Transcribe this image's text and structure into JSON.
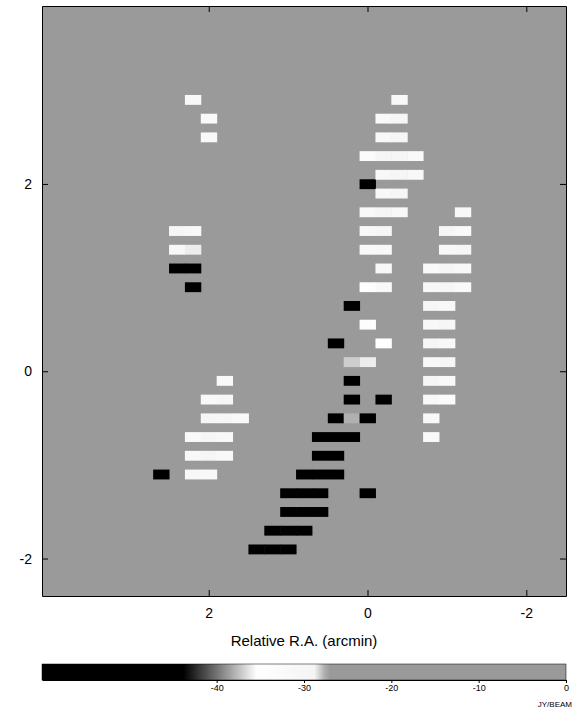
{
  "chart_data": {
    "type": "heatmap",
    "x_label": "Relative R.A. (arcmin)",
    "xlim": [
      4.1,
      -2.5
    ],
    "xticks": [
      2,
      0,
      -2
    ],
    "ylim": [
      -2.4,
      3.9
    ],
    "yticks": [
      -2,
      0,
      2
    ],
    "cells": [
      [
        1.4,
        -1.9,
        -47
      ],
      [
        1.2,
        -1.9,
        -48
      ],
      [
        1.0,
        -1.9,
        -46
      ],
      [
        1.2,
        -1.7,
        -48
      ],
      [
        1.0,
        -1.7,
        -48
      ],
      [
        0.8,
        -1.7,
        -46
      ],
      [
        1.0,
        -1.5,
        -47
      ],
      [
        0.8,
        -1.5,
        -48
      ],
      [
        0.6,
        -1.5,
        -45
      ],
      [
        1.0,
        -1.3,
        -45
      ],
      [
        0.8,
        -1.3,
        -48
      ],
      [
        0.6,
        -1.3,
        -47
      ],
      [
        0.8,
        -1.1,
        -47
      ],
      [
        0.6,
        -1.1,
        -48
      ],
      [
        0.4,
        -1.1,
        -45
      ],
      [
        0.6,
        -0.9,
        -48
      ],
      [
        0.4,
        -0.9,
        -47
      ],
      [
        0.6,
        -0.7,
        -45
      ],
      [
        0.4,
        -0.7,
        -48
      ],
      [
        0.2,
        -0.7,
        -46
      ],
      [
        0.4,
        -0.5,
        -46
      ],
      [
        0.2,
        -0.5,
        -38
      ],
      [
        0.0,
        -0.5,
        -47
      ],
      [
        0.2,
        -0.3,
        -47
      ],
      [
        -0.2,
        -0.3,
        -46
      ],
      [
        0.2,
        -0.1,
        -45
      ],
      [
        0.4,
        0.3,
        -47
      ],
      [
        0.2,
        0.7,
        -46
      ],
      [
        0.0,
        2.0,
        -47
      ],
      [
        0.0,
        -1.3,
        -45
      ],
      [
        0.0,
        0.1,
        -36
      ],
      [
        0.0,
        0.5,
        -34
      ],
      [
        0.0,
        0.9,
        -35
      ],
      [
        -0.2,
        0.3,
        -35
      ],
      [
        0.2,
        0.1,
        -37
      ],
      [
        -1.2,
        1.7,
        -31
      ],
      [
        -1.0,
        1.5,
        -30
      ],
      [
        -1.2,
        1.5,
        -32
      ],
      [
        -1.0,
        1.3,
        -31
      ],
      [
        -1.2,
        1.3,
        -30
      ],
      [
        -0.8,
        1.1,
        -32
      ],
      [
        -1.0,
        1.1,
        -30
      ],
      [
        -1.2,
        1.1,
        -31
      ],
      [
        -0.8,
        0.9,
        -31
      ],
      [
        -1.0,
        0.9,
        -30
      ],
      [
        -1.2,
        0.9,
        -32
      ],
      [
        -0.8,
        0.7,
        -30
      ],
      [
        -1.0,
        0.7,
        -31
      ],
      [
        -0.8,
        0.5,
        -31
      ],
      [
        -1.0,
        0.5,
        -30
      ],
      [
        -0.8,
        0.3,
        -30
      ],
      [
        -1.0,
        0.3,
        -31
      ],
      [
        -0.8,
        0.1,
        -31
      ],
      [
        -1.0,
        0.1,
        -30
      ],
      [
        -0.8,
        -0.1,
        -30
      ],
      [
        -1.0,
        -0.1,
        -32
      ],
      [
        -0.8,
        -0.3,
        -31
      ],
      [
        -1.0,
        -0.3,
        -33
      ],
      [
        -0.8,
        -0.5,
        -31
      ],
      [
        -0.8,
        -0.7,
        -32
      ],
      [
        -0.4,
        2.9,
        -31
      ],
      [
        -0.4,
        2.7,
        -30
      ],
      [
        -0.2,
        2.7,
        -32
      ],
      [
        -0.4,
        2.5,
        -30
      ],
      [
        -0.2,
        2.5,
        -31
      ],
      [
        -0.6,
        2.3,
        -32
      ],
      [
        -0.4,
        2.3,
        -30
      ],
      [
        -0.2,
        2.3,
        -30
      ],
      [
        0.0,
        2.3,
        -33
      ],
      [
        -0.6,
        2.1,
        -31
      ],
      [
        -0.4,
        2.1,
        -30
      ],
      [
        -0.2,
        2.1,
        -31
      ],
      [
        -0.4,
        1.9,
        -30
      ],
      [
        -0.2,
        1.9,
        -31
      ],
      [
        -0.4,
        1.7,
        -31
      ],
      [
        -0.2,
        1.7,
        -30
      ],
      [
        0.0,
        1.7,
        -32
      ],
      [
        -0.2,
        1.5,
        -30
      ],
      [
        0.0,
        1.5,
        -31
      ],
      [
        -0.2,
        1.3,
        -31
      ],
      [
        0.0,
        1.3,
        -32
      ],
      [
        -0.2,
        1.1,
        -31
      ],
      [
        -0.2,
        0.9,
        -32
      ],
      [
        1.8,
        -0.1,
        -32
      ],
      [
        2.0,
        -0.3,
        -31
      ],
      [
        1.8,
        -0.3,
        -30
      ],
      [
        2.0,
        -0.5,
        -30
      ],
      [
        1.8,
        -0.5,
        -30
      ],
      [
        1.6,
        -0.5,
        -32
      ],
      [
        2.2,
        -0.7,
        -32
      ],
      [
        2.0,
        -0.7,
        -30
      ],
      [
        1.8,
        -0.7,
        -31
      ],
      [
        2.2,
        -0.9,
        -31
      ],
      [
        2.0,
        -0.9,
        -30
      ],
      [
        1.8,
        -0.9,
        -32
      ],
      [
        2.2,
        -1.1,
        -31
      ],
      [
        2.0,
        -1.1,
        -32
      ],
      [
        2.6,
        -1.1,
        -45
      ],
      [
        2.4,
        1.5,
        -30
      ],
      [
        2.2,
        1.5,
        -31
      ],
      [
        2.4,
        1.3,
        -31
      ],
      [
        2.2,
        1.3,
        -36
      ],
      [
        2.4,
        1.1,
        -45
      ],
      [
        2.2,
        1.1,
        -46
      ],
      [
        2.2,
        0.9,
        -45
      ],
      [
        2.0,
        2.5,
        -31
      ],
      [
        2.0,
        2.7,
        -32
      ],
      [
        2.2,
        2.9,
        -31
      ]
    ],
    "colorbar": {
      "range": [
        -60,
        0
      ],
      "ticks": [
        -40,
        -30,
        -20,
        -10,
        0
      ],
      "label": "JY/BEAM"
    }
  }
}
